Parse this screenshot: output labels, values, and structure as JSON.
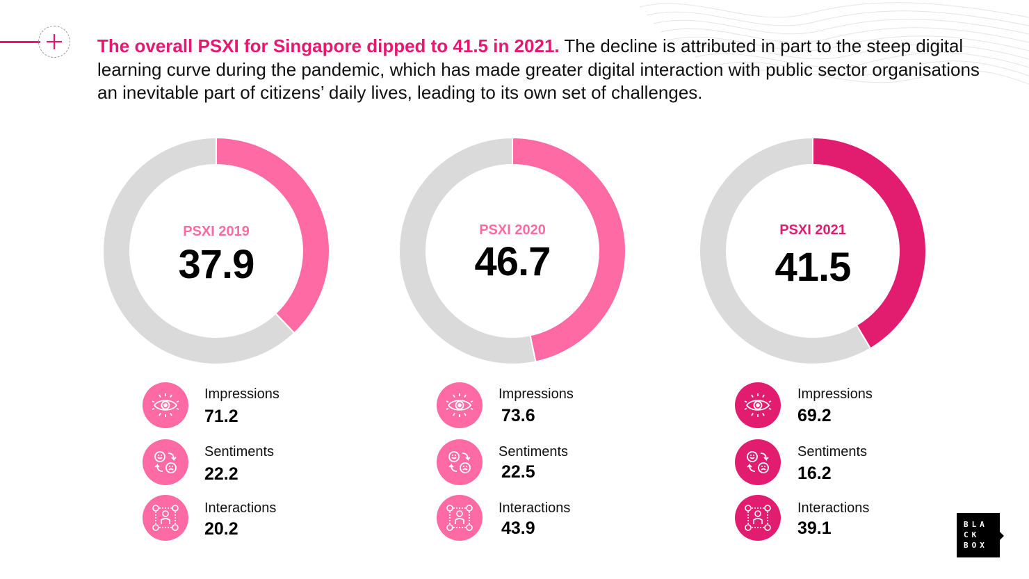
{
  "headline": {
    "highlight": "The overall PSXI for Singapore dipped to 41.5 in 2021.",
    "body": "The decline is attributed in part to the steep digital learning curve during the pandemic, which has made greater digital interaction with public sector organisations an inevitable part of citizens’ daily lives, leading to its own set of challenges."
  },
  "colors": {
    "accent": "#e6186f",
    "segment_light": "#fe6aa4",
    "segment_dark": "#e21c6f",
    "track": "#dadada"
  },
  "chart_data": [
    {
      "type": "pie",
      "label": "PSXI 2019",
      "value": 37.9,
      "max": 100,
      "display_value": "37.9",
      "color": "#fe6aa4",
      "metrics": [
        {
          "label": "Impressions",
          "value": "71.2",
          "icon": "eye-icon"
        },
        {
          "label": "Sentiments",
          "value": "22.2",
          "icon": "sentiment-icon"
        },
        {
          "label": "Interactions",
          "value": "20.2",
          "icon": "interaction-icon"
        }
      ]
    },
    {
      "type": "pie",
      "label": "PSXI 2020",
      "value": 46.7,
      "max": 100,
      "display_value": "46.7",
      "color": "#fe6aa4",
      "metrics": [
        {
          "label": "Impressions",
          "value": "73.6",
          "icon": "eye-icon"
        },
        {
          "label": "Sentiments",
          "value": "22.5",
          "icon": "sentiment-icon"
        },
        {
          "label": "Interactions",
          "value": "43.9",
          "icon": "interaction-icon"
        }
      ]
    },
    {
      "type": "pie",
      "label": "PSXI 2021",
      "value": 41.5,
      "max": 100,
      "display_value": "41.5",
      "color": "#e21c6f",
      "metrics": [
        {
          "label": "Impressions",
          "value": "69.2",
          "icon": "eye-icon"
        },
        {
          "label": "Sentiments",
          "value": "16.2",
          "icon": "sentiment-icon"
        },
        {
          "label": "Interactions",
          "value": "39.1",
          "icon": "interaction-icon"
        }
      ]
    }
  ],
  "logo": {
    "lines": [
      "BLA",
      "CK",
      "BOX"
    ],
    "icon": "blackbox-logo"
  }
}
